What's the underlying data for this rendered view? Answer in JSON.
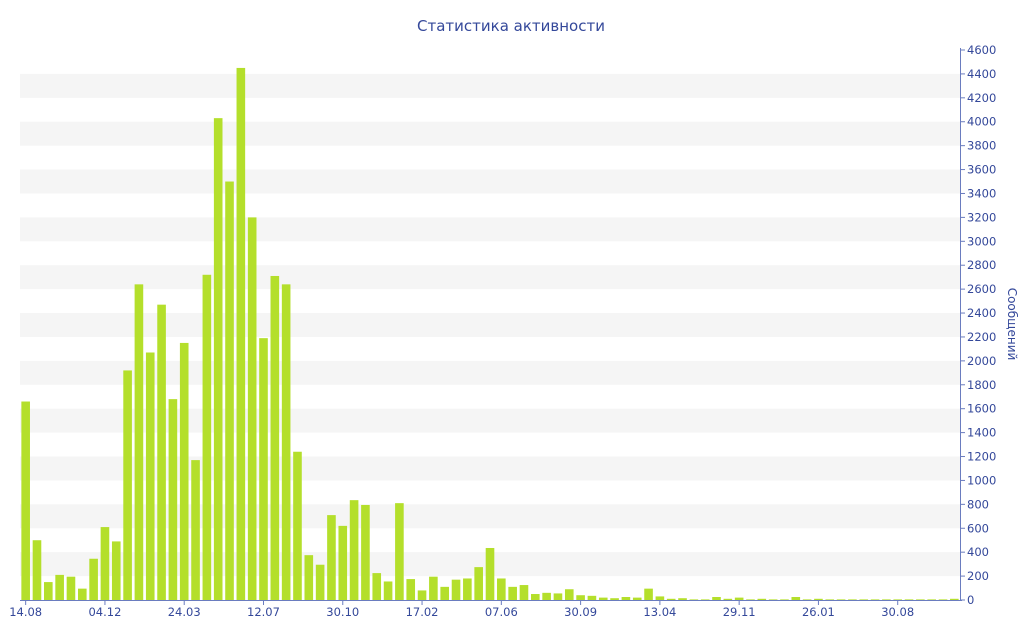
{
  "chart_data": {
    "type": "bar",
    "title": "Статистика активности",
    "xlabel": "",
    "ylabel": "Сообщений",
    "ylim": [
      0,
      4600
    ],
    "y_ticks": [
      0,
      200,
      400,
      600,
      800,
      1000,
      1200,
      1400,
      1600,
      1800,
      2000,
      2200,
      2400,
      2600,
      2800,
      3000,
      3200,
      3400,
      3600,
      3800,
      4000,
      4200,
      4400,
      4600
    ],
    "x_tick_labels": [
      {
        "index": 0,
        "label": "14.08"
      },
      {
        "index": 7,
        "label": "04.12"
      },
      {
        "index": 14,
        "label": "24.03"
      },
      {
        "index": 21,
        "label": "12.07"
      },
      {
        "index": 28,
        "label": "30.10"
      },
      {
        "index": 35,
        "label": "17.02"
      },
      {
        "index": 42,
        "label": "07.06"
      },
      {
        "index": 49,
        "label": "30.09"
      },
      {
        "index": 56,
        "label": "13.04"
      },
      {
        "index": 63,
        "label": "29.11"
      },
      {
        "index": 70,
        "label": "26.01"
      },
      {
        "index": 77,
        "label": "30.08"
      }
    ],
    "values": [
      1660,
      500,
      150,
      210,
      195,
      95,
      345,
      610,
      490,
      1920,
      2640,
      2070,
      2470,
      1680,
      2150,
      1170,
      2720,
      4030,
      3500,
      4450,
      3200,
      2190,
      2710,
      2640,
      1240,
      375,
      295,
      710,
      620,
      835,
      795,
      225,
      155,
      810,
      175,
      80,
      195,
      110,
      170,
      180,
      275,
      435,
      180,
      110,
      125,
      50,
      60,
      55,
      90,
      40,
      35,
      20,
      15,
      25,
      20,
      95,
      30,
      10,
      15,
      5,
      5,
      25,
      10,
      20,
      5,
      10,
      5,
      5,
      25,
      5,
      10,
      5,
      5,
      5,
      5,
      5,
      5,
      5,
      5,
      5,
      5,
      5,
      10
    ],
    "grid": "horizontal bands",
    "colors": {
      "bar": "#b4df2b",
      "band": "#f5f5f5",
      "text": "#34489a",
      "axis": "#6a7cbf"
    }
  }
}
